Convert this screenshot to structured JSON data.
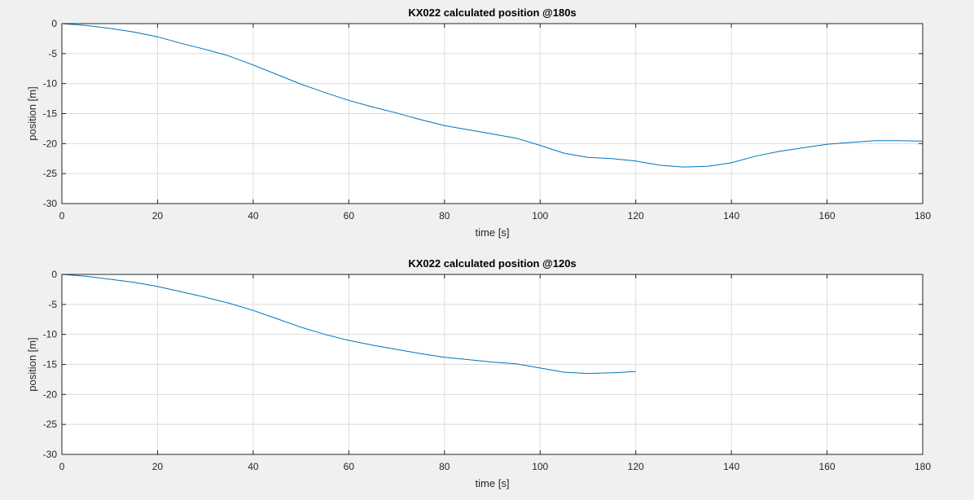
{
  "chart_data": [
    {
      "type": "line",
      "title": "KX022 calculated position @180s",
      "xlabel": "time [s]",
      "ylabel": "position [m]",
      "xlim": [
        0,
        180
      ],
      "ylim": [
        -30,
        0
      ],
      "xticks": [
        "0",
        "20",
        "40",
        "60",
        "80",
        "100",
        "120",
        "140",
        "160",
        "180"
      ],
      "yticks": [
        "0",
        "-5",
        "-10",
        "-15",
        "-20",
        "-25",
        "-30"
      ],
      "grid": true,
      "series": [
        {
          "color": "#0072bd",
          "x": [
            0,
            5,
            10,
            15,
            20,
            25,
            30,
            35,
            40,
            45,
            50,
            55,
            60,
            65,
            70,
            75,
            80,
            85,
            90,
            95,
            100,
            105,
            110,
            115,
            120,
            125,
            130,
            135,
            140,
            145,
            150,
            155,
            160,
            165,
            170,
            175,
            180
          ],
          "y": [
            0,
            -0.3,
            -0.8,
            -1.4,
            -2.2,
            -3.3,
            -4.3,
            -5.4,
            -6.9,
            -8.5,
            -10.1,
            -11.5,
            -12.8,
            -13.9,
            -14.9,
            -16.0,
            -17.0,
            -17.7,
            -18.4,
            -19.1,
            -20.3,
            -21.6,
            -22.3,
            -22.5,
            -22.9,
            -23.6,
            -23.9,
            -23.8,
            -23.2,
            -22.1,
            -21.3,
            -20.7,
            -20.1,
            -19.8,
            -19.5,
            -19.5,
            -19.6
          ]
        }
      ]
    },
    {
      "type": "line",
      "title": "KX022 calculated position @120s",
      "xlabel": "time [s]",
      "ylabel": "position [m]",
      "xlim": [
        0,
        180
      ],
      "ylim": [
        -30,
        0
      ],
      "xticks": [
        "0",
        "20",
        "40",
        "60",
        "80",
        "100",
        "120",
        "140",
        "160",
        "180"
      ],
      "yticks": [
        "0",
        "-5",
        "-10",
        "-15",
        "-20",
        "-25",
        "-30"
      ],
      "grid": true,
      "series": [
        {
          "color": "#0072bd",
          "x": [
            0,
            5,
            10,
            15,
            20,
            25,
            30,
            35,
            40,
            45,
            50,
            55,
            60,
            65,
            70,
            75,
            80,
            85,
            90,
            95,
            100,
            105,
            110,
            115,
            120
          ],
          "y": [
            0,
            -0.3,
            -0.8,
            -1.3,
            -2.0,
            -2.9,
            -3.8,
            -4.8,
            -6.0,
            -7.4,
            -8.8,
            -10.0,
            -11.0,
            -11.8,
            -12.5,
            -13.2,
            -13.8,
            -14.2,
            -14.6,
            -14.9,
            -15.6,
            -16.3,
            -16.5,
            -16.4,
            -16.2
          ]
        }
      ]
    }
  ]
}
